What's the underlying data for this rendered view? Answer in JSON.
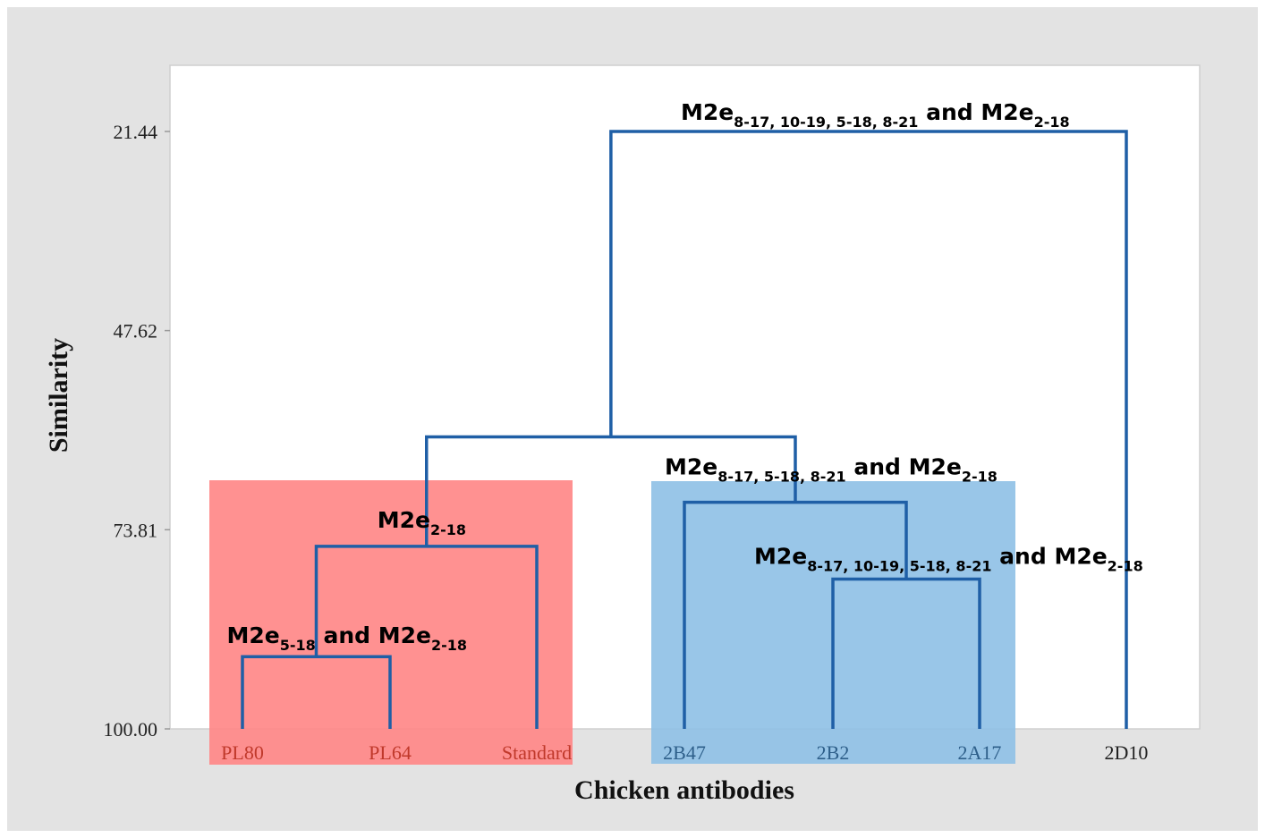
{
  "chart_data": {
    "type": "dendrogram",
    "xlabel": "Chicken antibodies",
    "ylabel": "Similarity",
    "yticks": [
      21.44,
      47.62,
      73.81,
      100.0
    ],
    "ytick_labels": [
      "21.44",
      "47.62",
      "73.81",
      "100.00"
    ],
    "ylim": [
      100.0,
      12.81
    ],
    "leaves": [
      "PL80",
      "PL64",
      "Standard",
      "2B47",
      "2B2",
      "2A17",
      "2D10"
    ],
    "merges": [
      {
        "id": "m1",
        "children": [
          "PL80",
          "PL64"
        ],
        "similarity": 90.5,
        "label": {
          "main": "M2e",
          "sub": "5-18",
          "mid": " and M2e",
          "sub2": "2-18"
        }
      },
      {
        "id": "m2",
        "children": [
          "m1",
          "Standard"
        ],
        "similarity": 76.0,
        "label": {
          "main": "M2e",
          "sub": "2-18",
          "mid": "",
          "sub2": ""
        }
      },
      {
        "id": "m3",
        "children": [
          "2B2",
          "2A17"
        ],
        "similarity": 80.3,
        "label": {
          "main": "M2e",
          "sub": "8-17, 10-19, 5-18, 8-21",
          "mid": " and M2e",
          "sub2": "2-18"
        }
      },
      {
        "id": "m4",
        "children": [
          "2B47",
          "m3"
        ],
        "similarity": 70.2,
        "label": {
          "main": "M2e",
          "sub": "8-17, 5-18, 8-21",
          "mid": " and M2e",
          "sub2": "2-18"
        }
      },
      {
        "id": "m5",
        "children": [
          "m2",
          "m4"
        ],
        "similarity": 61.6,
        "label": null
      },
      {
        "id": "m6",
        "children": [
          "m5",
          "2D10"
        ],
        "similarity": 21.44,
        "label": {
          "main": "M2e",
          "sub": "8-17, 10-19, 5-18, 8-21",
          "mid": " and M2e",
          "sub2": "2-18"
        }
      }
    ],
    "clusters": [
      {
        "members": [
          "PL80",
          "PL64",
          "Standard"
        ],
        "color": "#ff8585",
        "label_color": "#c0392b"
      },
      {
        "members": [
          "2B47",
          "2B2",
          "2A17"
        ],
        "color": "#8ec0e6",
        "label_color": "#2e5f8a"
      }
    ],
    "colors": {
      "tree": "#1f5fa6",
      "frame_bg": "#e3e3e3",
      "plot_bg": "#ffffff",
      "default_leaf_label": "#222222"
    }
  }
}
